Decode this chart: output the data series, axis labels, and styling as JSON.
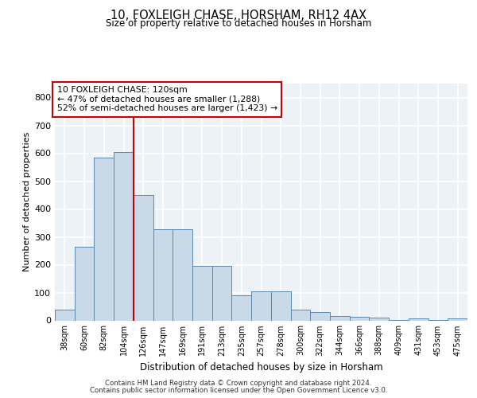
{
  "title_line1": "10, FOXLEIGH CHASE, HORSHAM, RH12 4AX",
  "title_line2": "Size of property relative to detached houses in Horsham",
  "xlabel": "Distribution of detached houses by size in Horsham",
  "ylabel": "Number of detached properties",
  "categories": [
    "38sqm",
    "60sqm",
    "82sqm",
    "104sqm",
    "126sqm",
    "147sqm",
    "169sqm",
    "191sqm",
    "213sqm",
    "235sqm",
    "257sqm",
    "278sqm",
    "300sqm",
    "322sqm",
    "344sqm",
    "366sqm",
    "388sqm",
    "409sqm",
    "431sqm",
    "453sqm",
    "475sqm"
  ],
  "values": [
    38,
    265,
    585,
    605,
    450,
    328,
    328,
    195,
    195,
    90,
    103,
    103,
    38,
    30,
    15,
    13,
    10,
    2,
    7,
    2,
    7
  ],
  "bar_color": "#c9d9e8",
  "bar_edge_color": "#5b87b0",
  "vline_color": "#cc0000",
  "annotation_box_edge": "#cc0000",
  "annotation_text": "10 FOXLEIGH CHASE: 120sqm\n← 47% of detached houses are smaller (1,288)\n52% of semi-detached houses are larger (1,423) →",
  "footer_line1": "Contains HM Land Registry data © Crown copyright and database right 2024.",
  "footer_line2": "Contains public sector information licensed under the Open Government Licence v3.0.",
  "ylim": [
    0,
    850
  ],
  "yticks": [
    0,
    100,
    200,
    300,
    400,
    500,
    600,
    700,
    800
  ],
  "background_color": "#edf2f7",
  "grid_color": "#ffffff",
  "fig_bg": "#ffffff",
  "vline_x": 3.5
}
